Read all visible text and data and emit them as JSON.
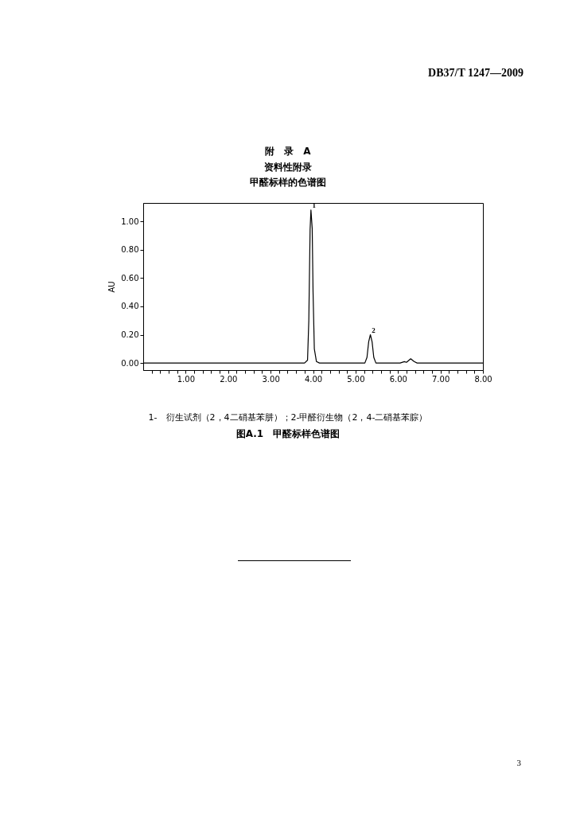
{
  "chart_data": {
    "type": "line",
    "title": "甲醛标样的色谱图",
    "subtitle": "资料性附录",
    "ylabel": "AU",
    "annotations": [
      "DB37/T 1247—2009",
      "附　录　A",
      {
        "text": "1",
        "x": 3.95,
        "y": 1.08
      },
      {
        "text": "2",
        "x": 5.35,
        "y": 0.2
      },
      "1-　衍生试剂（2，4二硝基苯肼）；2-甲醛衍生物（2，4-二硝基苯腙）",
      "图A.1　甲醛标样色谱图",
      "3"
    ],
    "x": [
      0,
      3.8,
      3.87,
      3.9,
      3.93,
      3.95,
      3.98,
      4.0,
      4.03,
      4.08,
      4.15,
      5.22,
      5.27,
      5.31,
      5.35,
      5.39,
      5.43,
      5.48,
      6.05,
      6.15,
      6.2,
      6.3,
      6.38,
      6.45,
      8
    ],
    "series": [
      {
        "color": "#000000",
        "values": [
          0,
          0,
          0.02,
          0.3,
          0.94,
          1.08,
          0.95,
          0.5,
          0.1,
          0.01,
          0,
          0,
          0.04,
          0.15,
          0.2,
          0.15,
          0.04,
          0,
          0,
          0.01,
          0.005,
          0.03,
          0.01,
          0,
          0
        ]
      }
    ],
    "xlim": [
      0,
      8
    ],
    "ylim": [
      -0.05,
      1.13
    ],
    "xticks": [
      {
        "value": 0.2,
        "label": null
      },
      {
        "value": 0.4,
        "label": null
      },
      {
        "value": 0.6,
        "label": null
      },
      {
        "value": 0.8,
        "label": null
      },
      {
        "value": 1,
        "label": "1.00"
      },
      {
        "value": 1.2,
        "label": null
      },
      {
        "value": 1.4,
        "label": null
      },
      {
        "value": 1.6,
        "label": null
      },
      {
        "value": 1.8,
        "label": null
      },
      {
        "value": 2,
        "label": "2.00"
      },
      {
        "value": 2.2,
        "label": null
      },
      {
        "value": 2.4,
        "label": null
      },
      {
        "value": 2.6,
        "label": null
      },
      {
        "value": 2.8,
        "label": null
      },
      {
        "value": 3,
        "label": "3.00"
      },
      {
        "value": 3.2,
        "label": null
      },
      {
        "value": 3.4,
        "label": null
      },
      {
        "value": 3.6,
        "label": null
      },
      {
        "value": 3.8,
        "label": null
      },
      {
        "value": 4,
        "label": "4.00"
      },
      {
        "value": 4.2,
        "label": null
      },
      {
        "value": 4.4,
        "label": null
      },
      {
        "value": 4.6,
        "label": null
      },
      {
        "value": 4.8,
        "label": null
      },
      {
        "value": 5,
        "label": "5.00"
      },
      {
        "value": 5.2,
        "label": null
      },
      {
        "value": 5.4,
        "label": null
      },
      {
        "value": 5.6,
        "label": null
      },
      {
        "value": 5.8,
        "label": null
      },
      {
        "value": 6,
        "label": "6.00"
      },
      {
        "value": 6.2,
        "label": null
      },
      {
        "value": 6.4,
        "label": null
      },
      {
        "value": 6.6,
        "label": null
      },
      {
        "value": 6.8,
        "label": null
      },
      {
        "value": 7,
        "label": "7.00"
      },
      {
        "value": 7.2,
        "label": null
      },
      {
        "value": 7.4,
        "label": null
      },
      {
        "value": 7.6,
        "label": null
      },
      {
        "value": 7.8,
        "label": null
      },
      {
        "value": 8,
        "label": "8.00"
      }
    ],
    "yticks": [
      {
        "value": 0,
        "label": "0.00"
      },
      {
        "value": 0.2,
        "label": "0.20"
      },
      {
        "value": 0.4,
        "label": "0.40"
      },
      {
        "value": 0.6,
        "label": "0.60"
      },
      {
        "value": 0.8,
        "label": "0.80"
      },
      {
        "value": 1,
        "label": "1.00"
      }
    ],
    "grid": false,
    "marker": "none",
    "line_style": "solid"
  }
}
